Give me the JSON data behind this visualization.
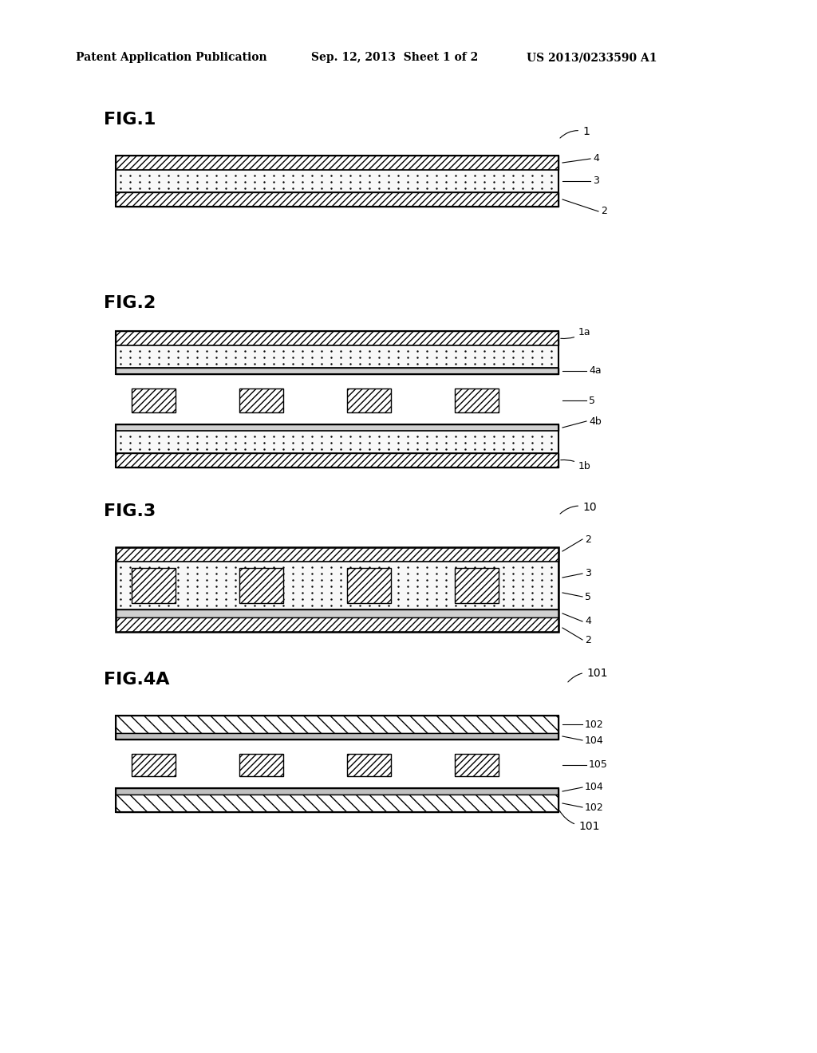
{
  "bg_color": "#ffffff",
  "header_left": "Patent Application Publication",
  "header_center": "Sep. 12, 2013  Sheet 1 of 2",
  "header_right": "US 2013/0233590 A1",
  "figures": [
    {
      "label": "FIG.1",
      "ref": "1"
    },
    {
      "label": "FIG.2",
      "ref": "1a/1b"
    },
    {
      "label": "FIG.3",
      "ref": "10"
    },
    {
      "label": "FIG.4A",
      "ref": "101"
    }
  ]
}
